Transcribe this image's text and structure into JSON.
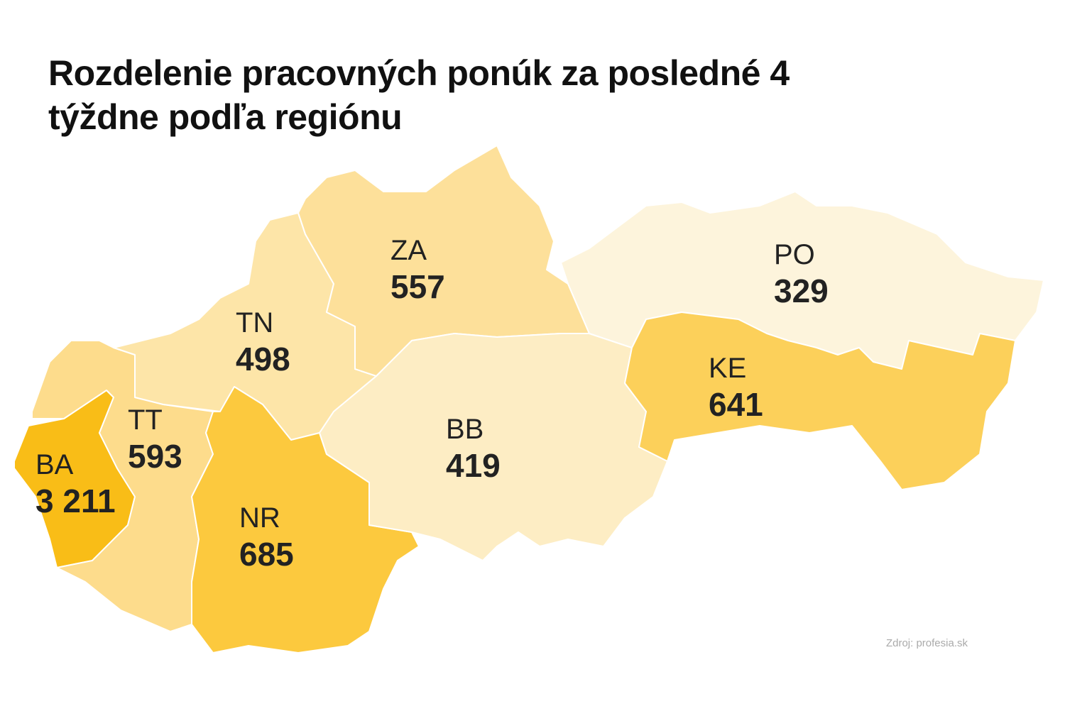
{
  "title": "Rozdelenie pracovných ponúk za posledné 4 týždne podľa regiónu",
  "regions": [
    {
      "code": "BA",
      "value": 3211,
      "value_label": "3 211",
      "color": "#f9bd17"
    },
    {
      "code": "TT",
      "value": 593,
      "color": "#fddc8c"
    },
    {
      "code": "TN",
      "value": 498,
      "color": "#fde5a8"
    },
    {
      "code": "ZA",
      "value": 557,
      "color": "#fde09a"
    },
    {
      "code": "NR",
      "value": 685,
      "color": "#fcc93e"
    },
    {
      "code": "BB",
      "value": 419,
      "color": "#fdedc4"
    },
    {
      "code": "PO",
      "value": 329,
      "color": "#fdf4dc"
    },
    {
      "code": "KE",
      "value": 641,
      "color": "#fcd05a"
    }
  ],
  "source": "Zdroj: profesia.sk"
}
